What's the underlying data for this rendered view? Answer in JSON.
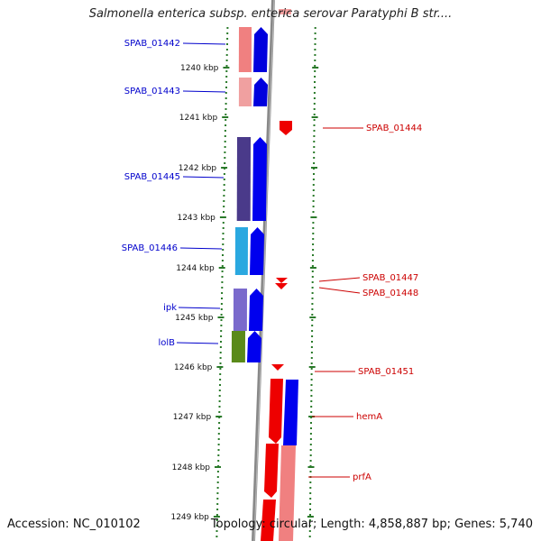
{
  "title": "Salmonella enterica subsp. enterica serovar Paratyphi B str....",
  "accession": "Accession: NC_010102",
  "topology": "Topology: circular; Length: 4,858,887 bp; Genes: 5,740",
  "colors": {
    "forward_label": "#0000cc",
    "reverse_label": "#cc0000",
    "ruler": "#2a7a2a",
    "backbone": "#888888"
  },
  "ruler_ticks": [
    "1240 kbp",
    "1241 kbp",
    "1242 kbp",
    "1243 kbp",
    "1244 kbp",
    "1245 kbp",
    "1246 kbp",
    "1247 kbp",
    "1248 kbp",
    "1249 kbp"
  ],
  "genes": [
    {
      "name": "SPAB_01442",
      "strand": "forward"
    },
    {
      "name": "SPAB_01443",
      "strand": "forward"
    },
    {
      "name": "SPAB_01444",
      "strand": "reverse"
    },
    {
      "name": "SPAB_01445",
      "strand": "forward"
    },
    {
      "name": "SPAB_01446",
      "strand": "forward"
    },
    {
      "name": "SPAB_01447",
      "strand": "reverse"
    },
    {
      "name": "SPAB_01448",
      "strand": "reverse"
    },
    {
      "name": "ipk",
      "strand": "forward"
    },
    {
      "name": "lolB",
      "strand": "forward"
    },
    {
      "name": "SPAB_01451",
      "strand": "reverse"
    },
    {
      "name": "hemA",
      "strand": "reverse"
    },
    {
      "name": "prfA",
      "strand": "reverse"
    }
  ]
}
